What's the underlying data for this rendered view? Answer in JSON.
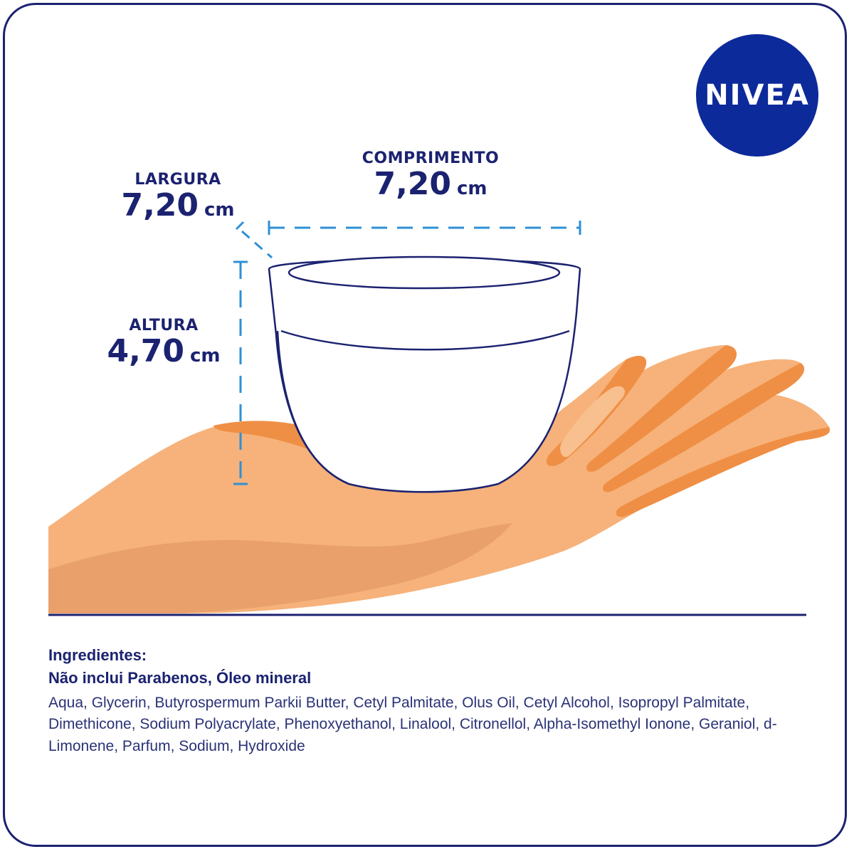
{
  "brand": {
    "logo_text": "NIVEA",
    "logo_color": "#0d2a9a",
    "text_color": "#1b2270"
  },
  "dimensions": {
    "largura": {
      "label": "LARGURA",
      "value": "7,20",
      "unit": "cm"
    },
    "comprimento": {
      "label": "COMPRIMENTO",
      "value": "7,20",
      "unit": "cm"
    },
    "altura": {
      "label": "ALTURA",
      "value": "4,70",
      "unit": "cm"
    }
  },
  "ingredients": {
    "title": "Ingredientes:",
    "subtitle": "Não inclui Parabenos, Óleo mineral",
    "list": "Aqua, Glycerin, Butyrospermum Parkii Butter, Cetyl Palmitate, Olus Oil, Cetyl Alcohol, Isopropyl Palmitate, Dimethicone, Sodium Polyacrylate, Phenoxyethanol, Linalool, Citronellol, Alpha-Isomethyl Ionone, Geraniol, d-Limonene, Parfum, Sodium, Hydroxide"
  },
  "illustration": {
    "hand_colors": [
      "#f6b27a",
      "#ef8f45",
      "#e9a06a"
    ],
    "guide_color": "#2f8fd6",
    "icons": [
      "hand-illustration",
      "jar-illustration",
      "dimension-guides"
    ]
  }
}
